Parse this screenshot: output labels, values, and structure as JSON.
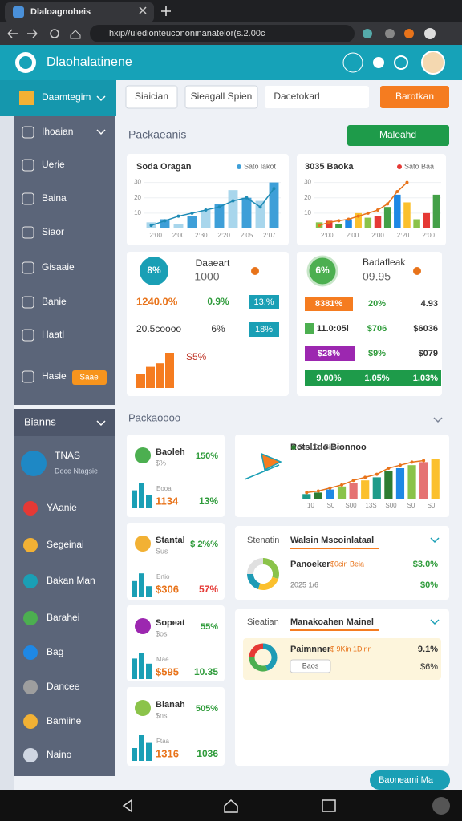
{
  "browser": {
    "tab_title": "Dlaloagnoheis",
    "url": "hxip//uledionteucononinanatelor(s.2.00c"
  },
  "header": {
    "title": "Dlaohalatinene"
  },
  "sidebar": {
    "top": "Daamtegim",
    "menu": [
      "Ihoaian",
      "Uerie",
      "Baina",
      "Siaor",
      "Gisaaie",
      "Banie",
      "Haatl",
      "Hasie"
    ],
    "badge": "Saae",
    "panel_title": "Bianns",
    "profile": {
      "name": "TNAS",
      "sub": "Doce Ntagsie"
    },
    "items": [
      "YAanie",
      "Segeinai",
      "Bakan Man",
      "Barahei",
      "Bag",
      "Dancee",
      "Bamiine",
      "Naino"
    ]
  },
  "toolbar": {
    "buttons": [
      "Siaician",
      "Sieagall Spien",
      "Dacetokarl"
    ],
    "primary": "Barotkan"
  },
  "section1": {
    "title": "Packaeanis",
    "button": "Maleahd"
  },
  "charts": [
    {
      "type": "bar",
      "title": "Soda Oragan",
      "legend": "Sato lakot",
      "ylim": [
        0,
        35
      ],
      "yticks": [
        10,
        20,
        30
      ],
      "xlabels": [
        "2:00",
        "2:00",
        "2:30",
        "2:20",
        "2:05",
        "2:07"
      ],
      "values": [
        4,
        6,
        3,
        8,
        12,
        16,
        25,
        20,
        18,
        30
      ],
      "line": [
        2,
        5,
        8,
        10,
        12,
        14,
        18,
        20,
        14,
        26
      ],
      "colors": [
        "#a8d6ec",
        "#3e9fd8"
      ],
      "line_color": "#1e8bb5"
    },
    {
      "type": "bar",
      "title": "3035 Baoka",
      "legend": "Sato Baa",
      "ylim": [
        0,
        35
      ],
      "yticks": [
        10,
        20,
        30
      ],
      "xlabels": [
        "2:00",
        "2:00",
        "2:00",
        "2:20",
        "2:00"
      ],
      "values": [
        4,
        5,
        3,
        6,
        10,
        7,
        8,
        14,
        22,
        17,
        6,
        10,
        22
      ],
      "line": [
        2,
        4,
        5,
        6,
        8,
        10,
        12,
        16,
        24,
        30,
        null,
        null,
        null
      ],
      "colors": [
        "#8bc34a",
        "#e53935",
        "#43a047",
        "#1e88e5",
        "#fbc02d"
      ],
      "line_color": "#e8731a"
    },
    {
      "type": "bar",
      "title": "Rotsl1do Bionnoo",
      "legend": "Sa 1So Bimo",
      "ylim": [
        0,
        30
      ],
      "yticks": [],
      "xlabels": [
        "10",
        "S0",
        "S00",
        "13S",
        "S00",
        "S0",
        "S0"
      ],
      "values": [
        3,
        4,
        6,
        8,
        10,
        12,
        14,
        18,
        20,
        22,
        24,
        26
      ],
      "line": [
        4,
        5,
        7,
        9,
        12,
        14,
        16,
        20,
        22,
        24,
        25,
        null
      ],
      "colors": [
        "#1e9b8a",
        "#2e7d32",
        "#1e88e5",
        "#8bc34a",
        "#e57373",
        "#fbc02d"
      ],
      "line_color": "#e8731a"
    }
  ],
  "stat_a": {
    "circle": "8%",
    "title": "Daaeart",
    "value": "1000",
    "rows": [
      [
        "1240.0%",
        "0.9%",
        "13.%"
      ],
      [
        "20.5coooo",
        "6%",
        "18%"
      ]
    ],
    "note": "S5%",
    "bars": [
      8,
      12,
      14,
      20
    ]
  },
  "stat_b": {
    "circle": "6%",
    "title": "Badafleak",
    "value": "09.95",
    "rows": [
      [
        "8381%",
        "20%",
        "4.93"
      ],
      [
        "11.0:05l",
        "$706",
        "$6036"
      ],
      [
        "$28%",
        "$9%",
        "$079"
      ],
      [
        "9.00%",
        "1.05%",
        "1.03%"
      ]
    ]
  },
  "section2": {
    "title": "Packaoooo"
  },
  "cards": [
    {
      "title": "Baoleh",
      "sub": "$%",
      "pct": "150%",
      "small": "Eooa",
      "v1": "1134",
      "v2": "13%",
      "bars": [
        14,
        20,
        10
      ]
    },
    {
      "title": "Stantal",
      "sub": "Sus",
      "pct": "$ 2%%",
      "small": "Ertio",
      "v1": "$306",
      "v2": "57%",
      "bars": [
        12,
        18,
        8
      ]
    },
    {
      "title": "Sopeat",
      "sub": "$os",
      "pct": "55%",
      "small": "Mae",
      "v1": "$595",
      "v2": "10.35",
      "bars": [
        16,
        20,
        12
      ]
    },
    {
      "title": "Blanah",
      "sub": "$ns",
      "pct": "505%",
      "small": "Ftaa",
      "v1": "1316",
      "v2": "1036",
      "bars": [
        10,
        20,
        14
      ]
    }
  ],
  "donuts": [
    {
      "tab": "Stenatin",
      "title": "Walsin Mscoinlataal",
      "label": "Panoeker",
      "legend": "$0cin Beia",
      "sub": "2025 1/6",
      "v1": "$3.0%",
      "v2": "$0%",
      "values": [
        30,
        25,
        20,
        25
      ],
      "colors": [
        "#8bc34a",
        "#fbc02d",
        "#1e9bb5",
        "#e0e0e0"
      ]
    },
    {
      "tab": "Sieatian",
      "title": "Manakoahen Mainel",
      "label": "Paimnner",
      "legend": "$ 9Kin 1Dinn",
      "button": "Baos",
      "v1": "9.1%",
      "v2": "$6%",
      "values": [
        45,
        30,
        25
      ],
      "colors": [
        "#1e9bb5",
        "#4caf50",
        "#e53935"
      ]
    }
  ],
  "footer_button": "Baoneami Ma"
}
